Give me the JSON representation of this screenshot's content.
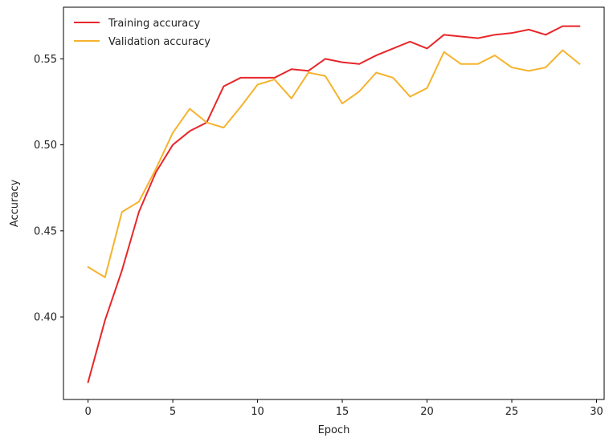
{
  "chart_data": {
    "type": "line",
    "xlabel": "Epoch",
    "ylabel": "Accuracy",
    "xlim": [
      -1.45,
      30.45
    ],
    "ylim": [
      0.352,
      0.58
    ],
    "xticks": [
      0,
      5,
      10,
      15,
      20,
      25,
      30
    ],
    "yticks": [
      0.4,
      0.45,
      0.5,
      0.55
    ],
    "xtick_labels": [
      "0",
      "5",
      "10",
      "15",
      "20",
      "25",
      "30"
    ],
    "ytick_labels": [
      "0.40",
      "0.45",
      "0.50",
      "0.55"
    ],
    "grid": false,
    "legend": "top-left",
    "x": [
      0,
      1,
      2,
      3,
      4,
      5,
      6,
      7,
      8,
      9,
      10,
      11,
      12,
      13,
      14,
      15,
      16,
      17,
      18,
      19,
      20,
      21,
      22,
      23,
      24,
      25,
      26,
      27,
      28,
      29
    ],
    "series": [
      {
        "name": "Training accuracy",
        "color": "#e8262a",
        "values": [
          0.362,
          0.398,
          0.427,
          0.461,
          0.484,
          0.5,
          0.508,
          0.513,
          0.534,
          0.539,
          0.539,
          0.539,
          0.544,
          0.543,
          0.55,
          0.548,
          0.547,
          0.552,
          0.556,
          0.56,
          0.556,
          0.564,
          0.563,
          0.562,
          0.564,
          0.565,
          0.567,
          0.564,
          0.569,
          0.569
        ]
      },
      {
        "name": "Validation accuracy",
        "color": "#f5b32e",
        "values": [
          0.429,
          0.423,
          0.461,
          0.467,
          0.486,
          0.507,
          0.521,
          0.513,
          0.51,
          0.522,
          0.535,
          0.538,
          0.527,
          0.542,
          0.54,
          0.524,
          0.531,
          0.542,
          0.539,
          0.528,
          0.533,
          0.554,
          0.547,
          0.547,
          0.552,
          0.545,
          0.543,
          0.545,
          0.555,
          0.547
        ]
      }
    ]
  }
}
